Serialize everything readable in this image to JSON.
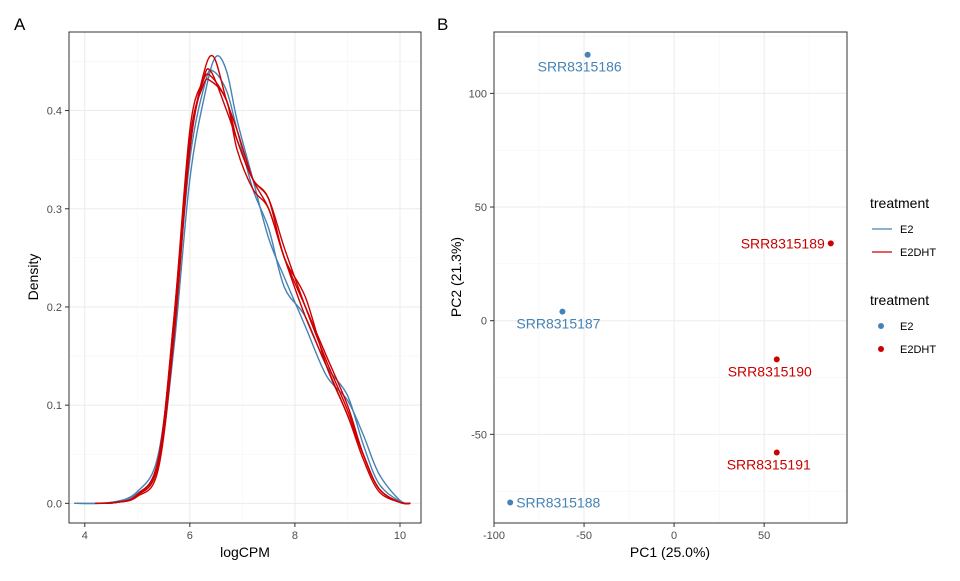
{
  "colors": {
    "E2": "#4682b4",
    "E2DHT": "#cc0000"
  },
  "chart_data": [
    {
      "panel": "A",
      "type": "line",
      "xlabel": "logCPM",
      "ylabel": "Density",
      "xlim": [
        3.7,
        10.4
      ],
      "ylim": [
        -0.02,
        0.48
      ],
      "xticks": [
        4,
        6,
        8,
        10
      ],
      "yticks": [
        0.0,
        0.1,
        0.2,
        0.3,
        0.4
      ],
      "ytick_labels": [
        "0.0",
        "0.1",
        "0.2",
        "0.3",
        "0.4"
      ],
      "grid": true,
      "legend": {
        "title": "treatment",
        "entries": [
          "E2",
          "E2DHT"
        ],
        "placement": "right"
      },
      "series": [
        {
          "group": "E2",
          "x": [
            3.8,
            4.5,
            5.0,
            5.4,
            5.7,
            6.0,
            6.3,
            6.5,
            6.7,
            6.9,
            7.2,
            7.5,
            7.8,
            8.2,
            8.6,
            9.0,
            9.3,
            9.6,
            10.0,
            10.2
          ],
          "y": [
            0.0,
            0.001,
            0.01,
            0.04,
            0.16,
            0.33,
            0.42,
            0.455,
            0.44,
            0.39,
            0.33,
            0.27,
            0.23,
            0.18,
            0.13,
            0.105,
            0.07,
            0.03,
            0.003,
            0.0
          ]
        },
        {
          "group": "E2",
          "x": [
            3.8,
            4.5,
            5.0,
            5.4,
            5.7,
            6.0,
            6.3,
            6.45,
            6.7,
            6.9,
            7.2,
            7.5,
            7.8,
            8.2,
            8.6,
            9.0,
            9.3,
            9.6,
            10.0,
            10.2
          ],
          "y": [
            0.0,
            0.001,
            0.012,
            0.05,
            0.18,
            0.35,
            0.43,
            0.44,
            0.42,
            0.38,
            0.32,
            0.28,
            0.22,
            0.19,
            0.14,
            0.11,
            0.06,
            0.02,
            0.002,
            0.0
          ]
        },
        {
          "group": "E2DHT",
          "x": [
            4.2,
            4.6,
            5.0,
            5.4,
            5.7,
            6.0,
            6.25,
            6.45,
            6.7,
            6.9,
            7.2,
            7.5,
            7.8,
            8.2,
            8.6,
            9.0,
            9.3,
            9.6,
            10.0,
            10.2
          ],
          "y": [
            0.0,
            0.001,
            0.008,
            0.04,
            0.18,
            0.36,
            0.435,
            0.455,
            0.41,
            0.38,
            0.33,
            0.3,
            0.25,
            0.19,
            0.14,
            0.09,
            0.05,
            0.015,
            0.001,
            0.0
          ]
        },
        {
          "group": "E2DHT",
          "x": [
            4.2,
            4.6,
            5.0,
            5.4,
            5.7,
            6.0,
            6.25,
            6.4,
            6.7,
            6.9,
            7.2,
            7.5,
            7.8,
            8.2,
            8.6,
            9.0,
            9.3,
            9.6,
            10.0,
            10.2
          ],
          "y": [
            0.0,
            0.001,
            0.008,
            0.045,
            0.19,
            0.38,
            0.43,
            0.435,
            0.41,
            0.37,
            0.33,
            0.31,
            0.26,
            0.2,
            0.145,
            0.095,
            0.05,
            0.015,
            0.001,
            0.0
          ]
        },
        {
          "group": "E2DHT",
          "x": [
            4.2,
            4.6,
            5.0,
            5.4,
            5.7,
            6.0,
            6.25,
            6.4,
            6.7,
            6.9,
            7.2,
            7.5,
            7.8,
            8.2,
            8.6,
            9.0,
            9.3,
            9.6,
            10.0,
            10.2
          ],
          "y": [
            0.0,
            0.001,
            0.007,
            0.035,
            0.17,
            0.36,
            0.43,
            0.44,
            0.4,
            0.37,
            0.33,
            0.31,
            0.25,
            0.21,
            0.14,
            0.09,
            0.045,
            0.012,
            0.001,
            0.0
          ]
        },
        {
          "group": "E2DHT",
          "x": [
            4.2,
            4.6,
            5.0,
            5.4,
            5.7,
            6.0,
            6.25,
            6.4,
            6.7,
            6.9,
            7.2,
            7.5,
            7.8,
            8.2,
            8.6,
            9.0,
            9.3,
            9.6,
            10.0,
            10.2
          ],
          "y": [
            0.0,
            0.001,
            0.009,
            0.045,
            0.19,
            0.37,
            0.425,
            0.43,
            0.41,
            0.36,
            0.32,
            0.3,
            0.25,
            0.2,
            0.15,
            0.1,
            0.05,
            0.015,
            0.001,
            0.0
          ]
        }
      ]
    },
    {
      "panel": "B",
      "type": "scatter",
      "xlabel": "PC1 (25.0%)",
      "ylabel": "PC2 (21.3%)",
      "xlim": [
        -100,
        96
      ],
      "ylim": [
        -89,
        127
      ],
      "xticks": [
        -100,
        -50,
        0,
        50
      ],
      "yticks": [
        -50,
        0,
        50,
        100
      ],
      "grid": true,
      "legend": {
        "title": "treatment",
        "entries": [
          "E2",
          "E2DHT"
        ],
        "placement": "right"
      },
      "points": [
        {
          "label": "SRR8315186",
          "group": "E2",
          "x": -48,
          "y": 117
        },
        {
          "label": "SRR8315187",
          "group": "E2",
          "x": -62,
          "y": 4
        },
        {
          "label": "SRR8315188",
          "group": "E2",
          "x": -91,
          "y": -80
        },
        {
          "label": "SRR8315189",
          "group": "E2DHT",
          "x": 87,
          "y": 34
        },
        {
          "label": "SRR8315190",
          "group": "E2DHT",
          "x": 57,
          "y": -17
        },
        {
          "label": "SRR8315191",
          "group": "E2DHT",
          "x": 57,
          "y": -58
        }
      ]
    }
  ],
  "legends": {
    "line": {
      "title": "treatment",
      "entries": [
        "E2",
        "E2DHT"
      ]
    },
    "point": {
      "title": "treatment",
      "entries": [
        "E2",
        "E2DHT"
      ]
    }
  }
}
